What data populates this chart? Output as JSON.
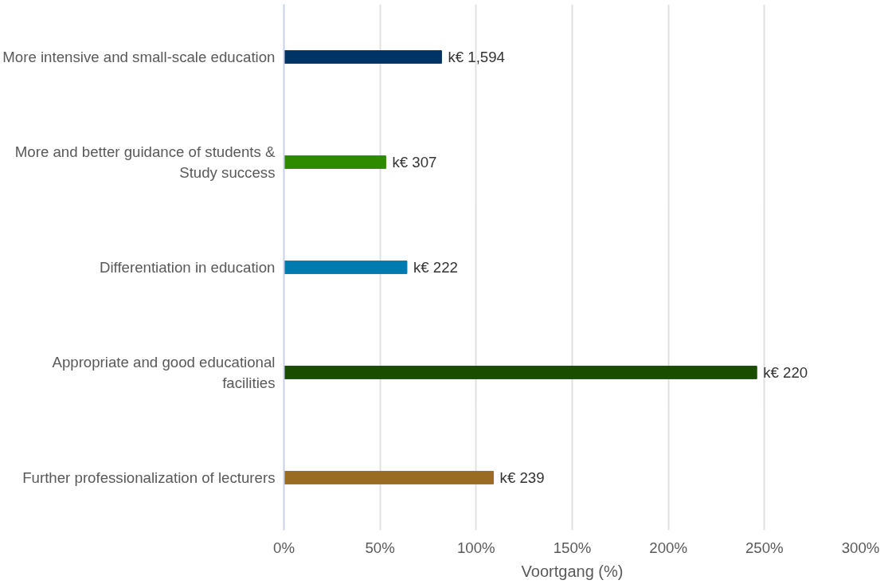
{
  "chart_data": {
    "type": "bar",
    "orientation": "horizontal",
    "xlabel": "Voortgang (%)",
    "categories": [
      "More intensive and small-scale education",
      "More and better guidance of students & Study success",
      "Differentiation in education",
      "Appropriate and good educational facilities",
      "Further professionalization of lecturers"
    ],
    "values": [
      82,
      53,
      64,
      246,
      109
    ],
    "colors": [
      "#003366",
      "#2e8b00",
      "#007bb0",
      "#1a4d00",
      "#9a6b22"
    ],
    "value_labels": [
      "k€ 1,594",
      "k€ 307",
      "k€ 222",
      "k€ 220",
      "k€ 239"
    ],
    "xlim": [
      0,
      300
    ],
    "xticks": [
      {
        "value": 0,
        "label": "0%"
      },
      {
        "value": 50,
        "label": "50%"
      },
      {
        "value": 100,
        "label": "100%"
      },
      {
        "value": 150,
        "label": "150%"
      },
      {
        "value": 200,
        "label": "200%"
      },
      {
        "value": 250,
        "label": "250%"
      },
      {
        "value": 300,
        "label": "300%"
      }
    ],
    "grid": "x"
  }
}
